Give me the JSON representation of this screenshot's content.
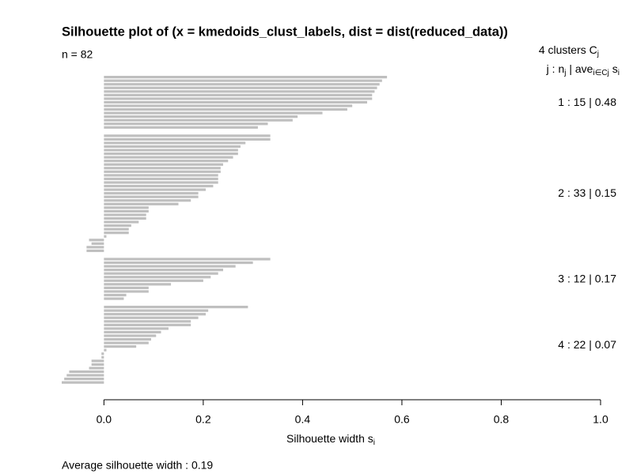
{
  "chart_data": {
    "type": "silhouette",
    "title": "Silhouette plot of (x = kmedoids_clust_labels, dist = dist(reduced_data))",
    "subtitle": "n = 82",
    "legend_title": [
      "4  clusters  C",
      "j"
    ],
    "legend_header": [
      "j :  n",
      "j",
      " | ave",
      "i∈Cj",
      "  s",
      "i"
    ],
    "xlabel": [
      "Silhouette width s",
      "i"
    ],
    "footer": "Average silhouette width :  0.19",
    "color": "#bfbfbf",
    "xlim": [
      -0.085,
      1.0
    ],
    "xticks": [
      {
        "value": 0,
        "label": "0.0"
      },
      {
        "value": 0.2,
        "label": "0.2"
      },
      {
        "value": 0.4,
        "label": "0.4"
      },
      {
        "value": 0.6,
        "label": "0.6"
      },
      {
        "value": 0.8,
        "label": "0.8"
      },
      {
        "value": 1.0,
        "label": "1.0"
      }
    ],
    "clusters": [
      {
        "label": "1 :   15  |  0.48",
        "values": [
          0.57,
          0.56,
          0.555,
          0.55,
          0.545,
          0.54,
          0.54,
          0.53,
          0.5,
          0.49,
          0.44,
          0.39,
          0.38,
          0.33,
          0.31
        ]
      },
      {
        "label": "2 :   33  |  0.15",
        "values": [
          0.335,
          0.335,
          0.285,
          0.275,
          0.27,
          0.27,
          0.26,
          0.25,
          0.24,
          0.235,
          0.235,
          0.23,
          0.23,
          0.23,
          0.22,
          0.205,
          0.19,
          0.19,
          0.175,
          0.15,
          0.09,
          0.09,
          0.085,
          0.085,
          0.07,
          0.055,
          0.05,
          0.05,
          0.005,
          -0.03,
          -0.025,
          -0.035,
          -0.035
        ]
      },
      {
        "label": "3 :   12  |  0.17",
        "values": [
          0.335,
          0.3,
          0.265,
          0.24,
          0.23,
          0.215,
          0.2,
          0.135,
          0.09,
          0.09,
          0.045,
          0.04
        ]
      },
      {
        "label": "4 :   22  |  0.07",
        "values": [
          0.29,
          0.21,
          0.205,
          0.19,
          0.175,
          0.175,
          0.13,
          0.115,
          0.105,
          0.095,
          0.09,
          0.065,
          0.005,
          -0.005,
          -0.005,
          -0.025,
          -0.025,
          -0.03,
          -0.07,
          -0.075,
          -0.08,
          -0.085
        ]
      }
    ]
  }
}
